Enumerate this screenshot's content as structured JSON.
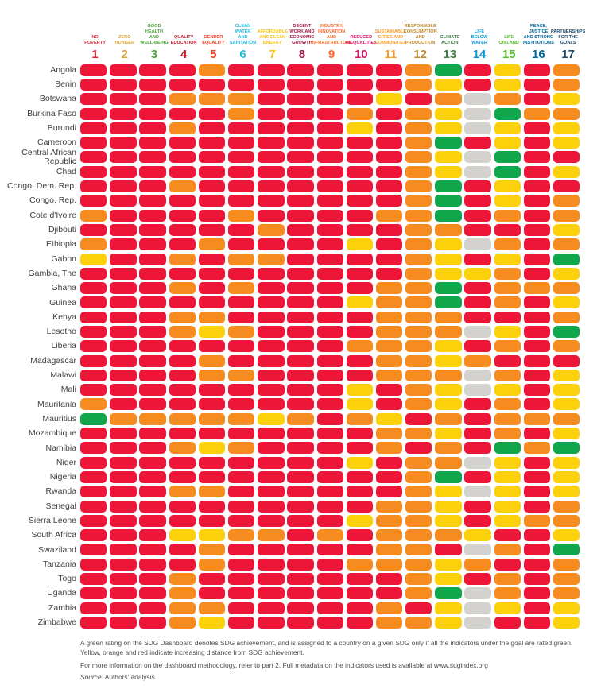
{
  "rating_colors": {
    "R": "#ed1639",
    "O": "#f68b1f",
    "Y": "#fcd10b",
    "G": "#0fa64c",
    "X": "#d4d2cf"
  },
  "rating_meaning": {
    "R": "red - far from achievement",
    "O": "orange",
    "Y": "yellow",
    "G": "green - SDG achievement",
    "X": "gray - not assessed"
  },
  "goals": [
    {
      "num": "1",
      "label": "NO\nPOVERTY",
      "color": "#E5243B"
    },
    {
      "num": "2",
      "label": "ZERO\nHUNGER",
      "color": "#DDA63A"
    },
    {
      "num": "3",
      "label": "GOOD HEALTH\nAND\nWELL-BEING",
      "color": "#4C9F38"
    },
    {
      "num": "4",
      "label": "QUALITY\nEDUCATION",
      "color": "#C5192D"
    },
    {
      "num": "5",
      "label": "GENDER\nEQUALITY",
      "color": "#FF3A21"
    },
    {
      "num": "6",
      "label": "CLEAN WATER\nAND\nSANITATION",
      "color": "#26BDE2"
    },
    {
      "num": "7",
      "label": "AFFORDABLE\nAND CLEAN\nENERGY",
      "color": "#FCC30B"
    },
    {
      "num": "8",
      "label": "DECENT\nWORK AND\nECONOMIC\nGROWTH",
      "color": "#A21942"
    },
    {
      "num": "9",
      "label": "INDUSTRY,\nINNOVATION\nAND\nINFRASTRUCTURE",
      "color": "#FD6925"
    },
    {
      "num": "10",
      "label": "REDUCED\nINEQUALITIES",
      "color": "#DD1367"
    },
    {
      "num": "11",
      "label": "SUSTAINABLE\nCITIES AND\nCOMMUNITIES",
      "color": "#FD9D24"
    },
    {
      "num": "12",
      "label": "RESPONSIBLE\nCONSUMPTION\nAND\nPRODUCTION",
      "color": "#BF8B2E"
    },
    {
      "num": "13",
      "label": "CLIMATE\nACTION",
      "color": "#3F7E44"
    },
    {
      "num": "14",
      "label": "LIFE\nBELOW\nWATER",
      "color": "#0A97D9"
    },
    {
      "num": "15",
      "label": "LIFE\nON LAND",
      "color": "#56C02B"
    },
    {
      "num": "16",
      "label": "PEACE,\nJUSTICE\nAND STRONG\nINSTITUTIONS",
      "color": "#00689D"
    },
    {
      "num": "17",
      "label": "PARTNERSHIPS\nFOR THE\nGOALS",
      "color": "#19486A"
    }
  ],
  "chart_data": {
    "type": "heatmap",
    "x_labels": [
      "1 No Poverty",
      "2 Zero Hunger",
      "3 Good Health and Well-Being",
      "4 Quality Education",
      "5 Gender Equality",
      "6 Clean Water and Sanitation",
      "7 Affordable and Clean Energy",
      "8 Decent Work and Economic Growth",
      "9 Industry, Innovation and Infrastructure",
      "10 Reduced Inequalities",
      "11 Sustainable Cities and Communities",
      "12 Responsible Consumption and Production",
      "13 Climate Action",
      "14 Life Below Water",
      "15 Life on Land",
      "16 Peace, Justice and Strong Institutions",
      "17 Partnerships for the Goals"
    ],
    "value_legend": "R=red, O=orange, Y=yellow, G=green, X=gray/not assessed",
    "rows": [
      {
        "country": "Angola",
        "ratings": "RRRRORRRRRROGRYRO"
      },
      {
        "country": "Benin",
        "ratings": "RRRRRRRRRRROYRYRO"
      },
      {
        "country": "Botswana",
        "ratings": "RRROOORRRRYROXORY"
      },
      {
        "country": "Burkina Faso",
        "ratings": "RRRRRORRROROYXGOO"
      },
      {
        "country": "Burundi",
        "ratings": "RRRORRRRRYROYXYRY"
      },
      {
        "country": "Cameroon",
        "ratings": "RRRRRRRRRRROGRYRY"
      },
      {
        "country": "Central African Republic",
        "ratings": "RRRRRRRRRRROYXGRR"
      },
      {
        "country": "Chad",
        "ratings": "RRRRRRRRRRROYXGRY"
      },
      {
        "country": "Congo, Dem. Rep.",
        "ratings": "RRRORRRRRRROGRYRR"
      },
      {
        "country": "Congo, Rep.",
        "ratings": "RRRRRRRRRRROGRYRO"
      },
      {
        "country": "Cote d'Ivoire",
        "ratings": "ORRRRORRRROOGRORO"
      },
      {
        "country": "Djibouti",
        "ratings": "RRRRRRORRRROORRRY"
      },
      {
        "country": "Ethiopia",
        "ratings": "ORRRORRRRYROYXORO"
      },
      {
        "country": "Gabon",
        "ratings": "YRROROORRRROYRYRG"
      },
      {
        "country": "Gambia, The",
        "ratings": "RRRRRRRRRRROYYORY"
      },
      {
        "country": "Ghana",
        "ratings": "RRRORORRRROOGROOO"
      },
      {
        "country": "Guinea",
        "ratings": "RRRRRRRRRYOOGRORY"
      },
      {
        "country": "Kenya",
        "ratings": "RRROORRRRROOORRRO"
      },
      {
        "country": "Lesotho",
        "ratings": "RRROYORRRROOOXYRG"
      },
      {
        "country": "Liberia",
        "ratings": "RRRRRRRRROOOYRORO"
      },
      {
        "country": "Madagascar",
        "ratings": "RRRRORRRRROOYORRR"
      },
      {
        "country": "Malawi",
        "ratings": "RRRROORRRROOOXORY"
      },
      {
        "country": "Mali",
        "ratings": "RRRRRRRRRYROYXYRY"
      },
      {
        "country": "Mauritania",
        "ratings": "ORRRRRRRRYROYRORY"
      },
      {
        "country": "Mauritius",
        "ratings": "GOOOOOYOROYROROOO"
      },
      {
        "country": "Mozambique",
        "ratings": "RRRRRRRRRROOYRORY"
      },
      {
        "country": "Namibia",
        "ratings": "RRROYORRRRORORGOG"
      },
      {
        "country": "Niger",
        "ratings": "RRRRRRRRRYROOXYRY"
      },
      {
        "country": "Nigeria",
        "ratings": "RRRRRRRRRRROGRYRY"
      },
      {
        "country": "Rwanda",
        "ratings": "RRROORRRRRROYXYRY"
      },
      {
        "country": "Senegal",
        "ratings": "RRRRRRRRRROOYRYRO"
      },
      {
        "country": "Sierra Leone",
        "ratings": "RRRRRRRRRYOOYRYOO"
      },
      {
        "country": "South Africa",
        "ratings": "RRRYYOOROROOOYRRY"
      },
      {
        "country": "Swaziland",
        "ratings": "RRRRORRRRROORXORG"
      },
      {
        "country": "Tanzania",
        "ratings": "RRRRORRRROOOYORRO"
      },
      {
        "country": "Togo",
        "ratings": "RRRORRRRRRROYRORO"
      },
      {
        "country": "Uganda",
        "ratings": "RRRORRRRRRROGXORO"
      },
      {
        "country": "Zambia",
        "ratings": "RRROORRRRRORYXYRY"
      },
      {
        "country": "Zimbabwe",
        "ratings": "RRROYRRRRROOYXRRY"
      }
    ]
  },
  "footnotes": {
    "line1": "A green rating on the SDG Dashboard denotes SDG achievement, and is assigned to a country on a given SDG only if all the indicators under the goal are rated green. Yellow, orange and red indicate increasing distance from SDG achievement.",
    "line2": "For more information on the dashboard methodology, refer to part 2. Full metadata on the indicators used is available at www.sdgindex.org",
    "source_label": "Source:",
    "source_text": " Authors' analysis"
  }
}
